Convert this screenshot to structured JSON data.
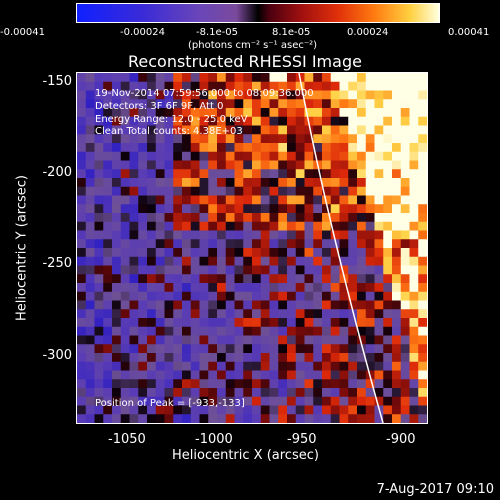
{
  "colorbar": {
    "ticks": [
      "-0.00041",
      "-0.00024",
      "-8.1e-05",
      "8.1e-05",
      "0.00024",
      "0.00041"
    ],
    "units": "(photons cm⁻² s⁻¹ asec⁻²)"
  },
  "title": "Reconstructed RHESSI Image",
  "info": {
    "line1": "19-Nov-2014 07:59:56.000 to 08:09:36.000",
    "line2": "Detectors: 3F 6F 9F, Att 0",
    "line3": "Energy Range: 12.0 - 25.0 keV",
    "line4": "Clean    Total counts: 4.38E+03"
  },
  "peak": "Position of Peak = [-933,-133]",
  "y_axis": {
    "label": "Heliocentric Y (arcsec)",
    "ticks": [
      "-150",
      "-200",
      "-250",
      "-300"
    ]
  },
  "x_axis": {
    "label": "Heliocentric X (arcsec)",
    "ticks": [
      "-1050",
      "-1000",
      "-950",
      "-900"
    ]
  },
  "timestamp": "7-Aug-2017 09:10"
}
